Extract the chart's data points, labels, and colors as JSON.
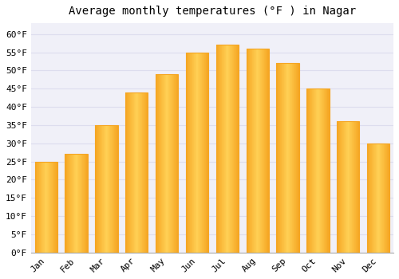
{
  "title": "Average monthly temperatures (°F ) in Nagar",
  "months": [
    "Jan",
    "Feb",
    "Mar",
    "Apr",
    "May",
    "Jun",
    "Jul",
    "Aug",
    "Sep",
    "Oct",
    "Nov",
    "Dec"
  ],
  "values": [
    25,
    27,
    35,
    44,
    49,
    55,
    57,
    56,
    52,
    45,
    36,
    30
  ],
  "bar_color_center": "#FFD055",
  "bar_color_edge": "#F5A623",
  "background_color": "#FFFFFF",
  "plot_bg_color": "#F0F0F8",
  "grid_color": "#DDDDEE",
  "yticks": [
    0,
    5,
    10,
    15,
    20,
    25,
    30,
    35,
    40,
    45,
    50,
    55,
    60
  ],
  "ylim": [
    0,
    63
  ],
  "ylabel_suffix": "°F",
  "title_fontsize": 10,
  "tick_fontsize": 8,
  "bar_width": 0.75
}
